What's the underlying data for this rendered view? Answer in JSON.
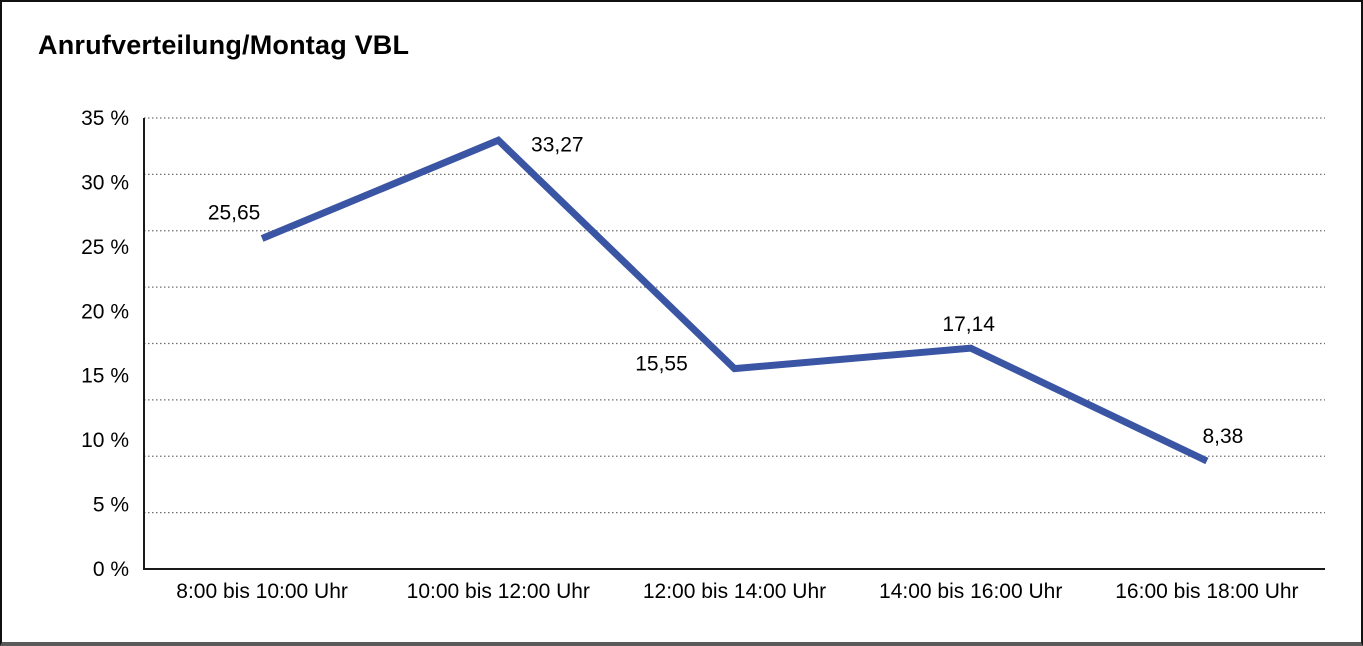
{
  "chart_data": {
    "type": "line",
    "title": "Anrufverteilung/Montag VBL",
    "categories": [
      "8:00 bis 10:00 Uhr",
      "10:00 bis 12:00 Uhr",
      "12:00 bis 14:00 Uhr",
      "14:00 bis 16:00 Uhr",
      "16:00 bis 18:00 Uhr"
    ],
    "values": [
      25.65,
      33.27,
      15.55,
      17.14,
      8.38
    ],
    "value_labels": [
      "25,65",
      "33,27",
      "15,55",
      "17,14",
      "8,38"
    ],
    "y_ticks": [
      "35 %",
      "30 %",
      "25 %",
      "20 %",
      "15 %",
      "10 %",
      "5 %",
      "0 %"
    ],
    "ylim": [
      0,
      35
    ],
    "xlabel": "",
    "ylabel": "",
    "legend": "none",
    "grid": "horizontal-dotted",
    "line_color": "#3A55A3",
    "gridline_color": "#6e6e6e",
    "axis_color": "#1a1a1a"
  }
}
